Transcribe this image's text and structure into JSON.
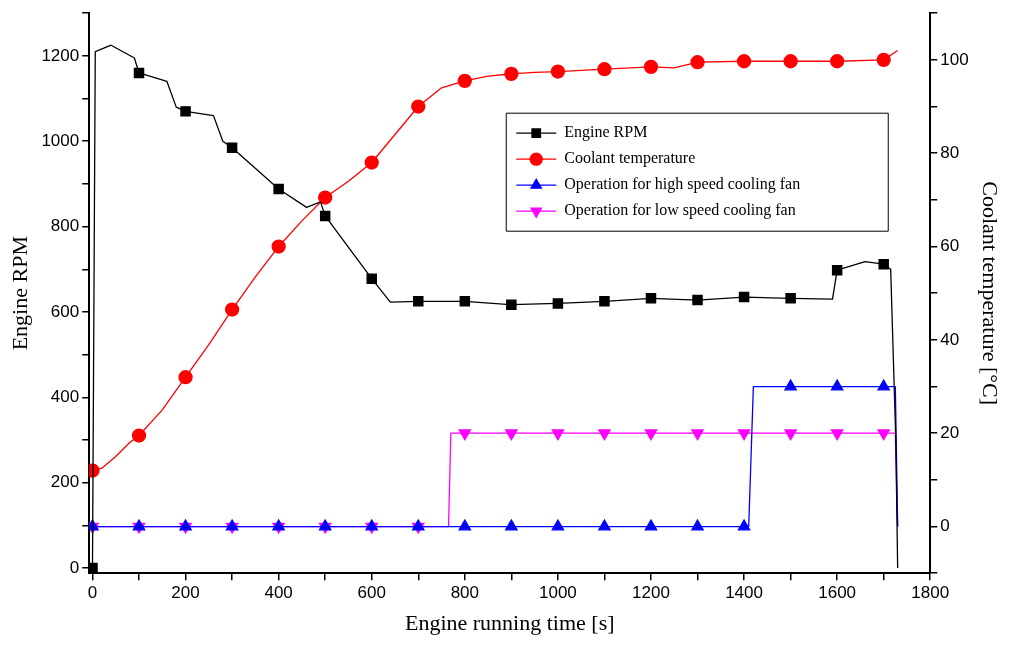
{
  "chart_data": {
    "type": "line",
    "xlabel": "Engine running time [s]",
    "ylabel": "Engine RPM",
    "y2label": "Coolant temperature [°C]",
    "xlim": [
      -7,
      1800
    ],
    "xticks": [
      0,
      {
        "value": 100,
        "label": null
      },
      200,
      {
        "value": 300,
        "label": null
      },
      400,
      {
        "value": 500,
        "label": null
      },
      600,
      {
        "value": 700,
        "label": null
      },
      800,
      {
        "value": 900,
        "label": null
      },
      1000,
      {
        "value": 1100,
        "label": null
      },
      1200,
      {
        "value": 1300,
        "label": null
      },
      1400,
      {
        "value": 1500,
        "label": null
      },
      1600,
      {
        "value": 1700,
        "label": null
      },
      1800
    ],
    "ylim": [
      -12,
      1300
    ],
    "yticks": [
      0,
      {
        "value": 100,
        "label": null
      },
      200,
      {
        "value": 300,
        "label": null
      },
      400,
      {
        "value": 500,
        "label": null
      },
      600,
      {
        "value": 700,
        "label": null
      },
      800,
      {
        "value": 900,
        "label": null
      },
      1000,
      {
        "value": 1100,
        "label": null
      },
      1200,
      {
        "value": 1300,
        "label": null
      }
    ],
    "y2lim": [
      -10,
      110
    ],
    "y2ticks": [
      {
        "value": -10,
        "label": null
      },
      0,
      {
        "value": 10,
        "label": null
      },
      20,
      {
        "value": 30,
        "label": null
      },
      40,
      {
        "value": 50,
        "label": null
      },
      60,
      {
        "value": 70,
        "label": null
      },
      80,
      {
        "value": 90,
        "label": null
      },
      100,
      {
        "value": 110,
        "label": null
      }
    ],
    "grid": false,
    "legend": "top right",
    "line_style": "solid",
    "series": [
      {
        "name": "Engine RPM",
        "color": "#000000",
        "marker": "square",
        "x": [
          0,
          3,
          6,
          40,
          90,
          100,
          160,
          180,
          200,
          260,
          280,
          300,
          400,
          460,
          490,
          500,
          600,
          640,
          700,
          800,
          900,
          1000,
          1100,
          1200,
          1300,
          1400,
          1500,
          1590,
          1600,
          1660,
          1700,
          1715,
          1726,
          1730
        ],
        "values": [
          0,
          600,
          1210,
          1225,
          1195,
          1160,
          1140,
          1080,
          1070,
          1060,
          1000,
          985,
          888,
          845,
          858,
          825,
          678,
          623,
          625,
          625,
          617,
          620,
          625,
          632,
          628,
          635,
          632,
          630,
          698,
          718,
          712,
          700,
          300,
          0
        ]
      },
      {
        "name": "Coolant temperature",
        "color": "#ff0000",
        "marker": "circle",
        "axis": "y2",
        "x": [
          0,
          20,
          50,
          80,
          100,
          150,
          200,
          250,
          300,
          350,
          400,
          450,
          500,
          550,
          600,
          650,
          700,
          750,
          800,
          850,
          900,
          950,
          1000,
          1100,
          1200,
          1250,
          1300,
          1400,
          1500,
          1600,
          1700,
          1730
        ],
        "values": [
          12,
          12.5,
          15,
          18,
          19.5,
          25,
          32,
          39,
          46.5,
          53.5,
          60,
          65.5,
          70.5,
          74,
          78,
          84,
          90,
          94,
          95.5,
          96.5,
          97,
          97.3,
          97.5,
          98,
          98.5,
          98.3,
          99.5,
          99.7,
          99.7,
          99.7,
          100,
          102
        ]
      },
      {
        "name": "Operation for high speed cooling fan",
        "color": "#0000ff",
        "marker": "triangle",
        "axis": "y2",
        "x": [
          0,
          100,
          200,
          300,
          400,
          500,
          600,
          700,
          800,
          900,
          1000,
          1100,
          1200,
          1300,
          1400,
          1410,
          1420,
          1500,
          1600,
          1700,
          1725,
          1730
        ],
        "values": [
          0,
          0,
          0,
          0,
          0,
          0,
          0,
          0,
          0,
          0,
          0,
          0,
          0,
          0,
          0,
          0,
          30,
          30,
          30,
          30,
          30,
          0
        ]
      },
      {
        "name": "Operation for low speed cooling fan",
        "color": "#ff00ff",
        "marker": "triangle-down",
        "axis": "y2",
        "x": [
          0,
          100,
          200,
          300,
          400,
          500,
          600,
          700,
          765,
          770,
          800,
          900,
          1000,
          1100,
          1200,
          1300,
          1400,
          1500,
          1600,
          1700,
          1725,
          1730
        ],
        "values": [
          0,
          0,
          0,
          0,
          0,
          0,
          0,
          0,
          0,
          20,
          20,
          20,
          20,
          20,
          20,
          20,
          20,
          20,
          20,
          20,
          20,
          0
        ]
      }
    ]
  }
}
